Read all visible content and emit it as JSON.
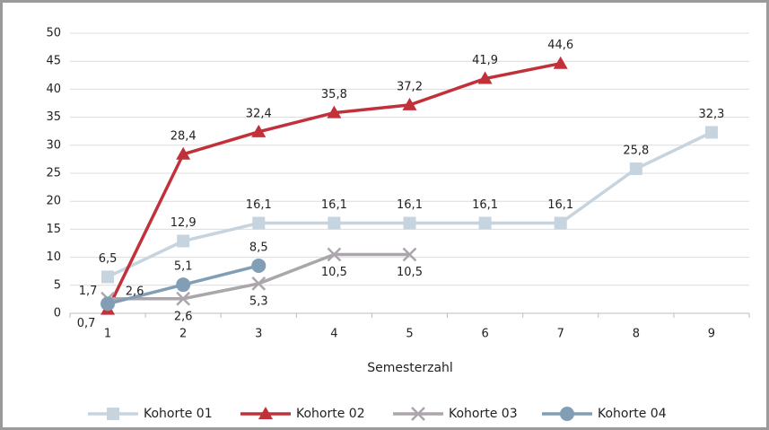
{
  "chart_data": {
    "type": "line",
    "x_label": "Semesterzahl",
    "categories": [
      "1",
      "2",
      "3",
      "4",
      "5",
      "6",
      "7",
      "8",
      "9"
    ],
    "ylim": [
      0,
      50
    ],
    "yticks": [
      0,
      5,
      10,
      15,
      20,
      25,
      30,
      35,
      40,
      45,
      50
    ],
    "grid": true,
    "legend": "bottom",
    "series": [
      {
        "name": "Kohorte 01",
        "color": "#c6d4df",
        "marker": "square",
        "values": [
          6.5,
          12.9,
          16.1,
          16.1,
          16.1,
          16.1,
          16.1,
          25.8,
          32.3
        ],
        "value_labels": [
          "6,5",
          "12,9",
          "16,1",
          "16,1",
          "16,1",
          "16,1",
          "16,1",
          "25,8",
          "32,3"
        ]
      },
      {
        "name": "Kohorte 02",
        "color": "#c0313a",
        "marker": "triangle",
        "values": [
          0.7,
          28.4,
          32.4,
          35.8,
          37.2,
          41.9,
          44.6,
          null,
          null
        ],
        "value_labels": [
          "0,7",
          "28,4",
          "32,4",
          "35,8",
          "37,2",
          "41,9",
          "44,6",
          null,
          null
        ]
      },
      {
        "name": "Kohorte 03",
        "color": "#aba6ab",
        "marker": "x",
        "values": [
          2.6,
          2.6,
          5.3,
          10.5,
          10.5,
          null,
          null,
          null,
          null
        ],
        "value_labels": [
          "2,6",
          "2,6",
          "5,3",
          "10,5",
          "10,5",
          null,
          null,
          null,
          null
        ]
      },
      {
        "name": "Kohorte 04",
        "color": "#819eb4",
        "marker": "circle",
        "values": [
          1.7,
          5.1,
          8.5,
          null,
          null,
          null,
          null,
          null,
          null
        ],
        "value_labels": [
          "1,7",
          "5,1",
          "8,5",
          null,
          null,
          null,
          null,
          null,
          null
        ]
      }
    ]
  }
}
